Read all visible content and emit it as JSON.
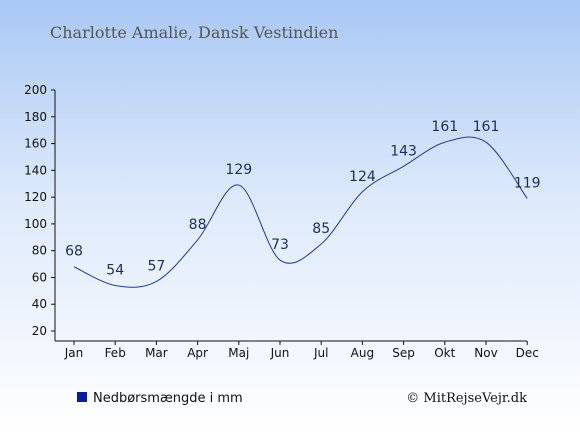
{
  "chart_data": {
    "type": "line",
    "title": "Charlotte Amalie, Dansk Vestindien",
    "categories": [
      "Jan",
      "Feb",
      "Mar",
      "Apr",
      "Maj",
      "Jun",
      "Jul",
      "Aug",
      "Sep",
      "Okt",
      "Nov",
      "Dec"
    ],
    "series": [
      {
        "name": "Nedbørsmængde i mm",
        "values": [
          68,
          54,
          57,
          88,
          129,
          73,
          85,
          124,
          143,
          161,
          161,
          119
        ]
      }
    ],
    "data_labels": [
      "68",
      "54",
      "57",
      "88",
      "129",
      "73",
      "85",
      "124",
      "143",
      "161",
      "161",
      "119"
    ],
    "y_ticks": [
      "20",
      "40",
      "60",
      "80",
      "100",
      "120",
      "140",
      "160",
      "180",
      "200"
    ],
    "ylim": [
      20,
      200
    ],
    "grid": false,
    "legend": {
      "label": "Nedbørsmængde i mm",
      "position": "bottom-left",
      "color": "#0a1aa8"
    },
    "credit": "© MitRejseVejr.dk",
    "colors": {
      "line": "#1f3a9a",
      "label": "#1b2f5e",
      "bg_top": "#a9c8f5",
      "bg_bottom": "#ffffff"
    }
  }
}
